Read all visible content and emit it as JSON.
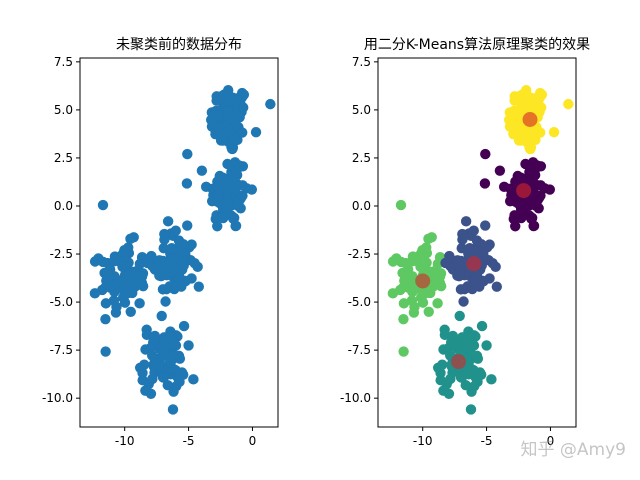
{
  "watermark": "知乎 @Amy9",
  "chart_data": [
    {
      "type": "scatter",
      "title": "未聚类前的数据分布",
      "xlim": [
        -13.5,
        2.0
      ],
      "ylim": [
        -11.5,
        7.7
      ],
      "xticks": [
        -10,
        -5,
        0
      ],
      "yticks": [
        -10.0,
        -7.5,
        -5.0,
        -2.5,
        0.0,
        2.5,
        5.0,
        7.5
      ],
      "point_color": "#1f77b4",
      "clusters": [
        {
          "center": [
            -1.8,
            4.5
          ],
          "spread": [
            0.75,
            0.9
          ],
          "count": 80
        },
        {
          "center": [
            -1.9,
            0.7
          ],
          "spread": [
            0.8,
            1.0
          ],
          "count": 85
        },
        {
          "center": [
            -10.1,
            -3.8
          ],
          "spread": [
            0.9,
            0.9
          ],
          "count": 85
        },
        {
          "center": [
            -6.2,
            -3.0
          ],
          "spread": [
            0.8,
            0.85
          ],
          "count": 80
        },
        {
          "center": [
            -7.0,
            -8.0
          ],
          "spread": [
            0.85,
            0.9
          ],
          "count": 80
        }
      ],
      "outliers": [
        [
          -11.7,
          0.05
        ],
        [
          -6.6,
          -0.8
        ],
        [
          -5.1,
          2.7
        ],
        [
          1.4,
          5.3
        ],
        [
          -4.2,
          -4.2
        ]
      ]
    },
    {
      "type": "scatter",
      "title": "用二分K-Means算法原理聚类的效果",
      "xlim": [
        -13.5,
        2.0
      ],
      "ylim": [
        -11.5,
        7.7
      ],
      "xticks": [
        -10,
        -5,
        0
      ],
      "yticks": [
        -10.0,
        -7.5,
        -5.0,
        -2.5,
        0.0,
        2.5,
        5.0,
        7.5
      ],
      "clusters": [
        {
          "center": [
            -1.8,
            4.5
          ],
          "spread": [
            0.75,
            0.9
          ],
          "count": 80,
          "color": "#fde725"
        },
        {
          "center": [
            -1.9,
            0.7
          ],
          "spread": [
            0.8,
            1.0
          ],
          "count": 85,
          "color": "#440154"
        },
        {
          "center": [
            -10.1,
            -3.8
          ],
          "spread": [
            0.9,
            0.9
          ],
          "count": 85,
          "color": "#5ec962"
        },
        {
          "center": [
            -6.2,
            -3.0
          ],
          "spread": [
            0.8,
            0.85
          ],
          "count": 80,
          "color": "#3b528b"
        },
        {
          "center": [
            -7.0,
            -8.0
          ],
          "spread": [
            0.85,
            0.9
          ],
          "count": 80,
          "color": "#21918c"
        }
      ],
      "outliers": [
        {
          "x": -11.7,
          "y": 0.05,
          "color": "#5ec962"
        },
        {
          "x": -6.6,
          "y": -0.8,
          "color": "#3b528b"
        },
        {
          "x": -5.1,
          "y": 2.7,
          "color": "#440154"
        },
        {
          "x": 1.4,
          "y": 5.3,
          "color": "#fde725"
        },
        {
          "x": -4.2,
          "y": -4.2,
          "color": "#3b528b"
        }
      ],
      "centroids": [
        {
          "x": -1.6,
          "y": 4.5
        },
        {
          "x": -2.1,
          "y": 0.8
        },
        {
          "x": -10.0,
          "y": -3.9
        },
        {
          "x": -6.0,
          "y": -3.0
        },
        {
          "x": -7.2,
          "y": -8.1
        }
      ],
      "centroid_color": "#d62728"
    }
  ]
}
